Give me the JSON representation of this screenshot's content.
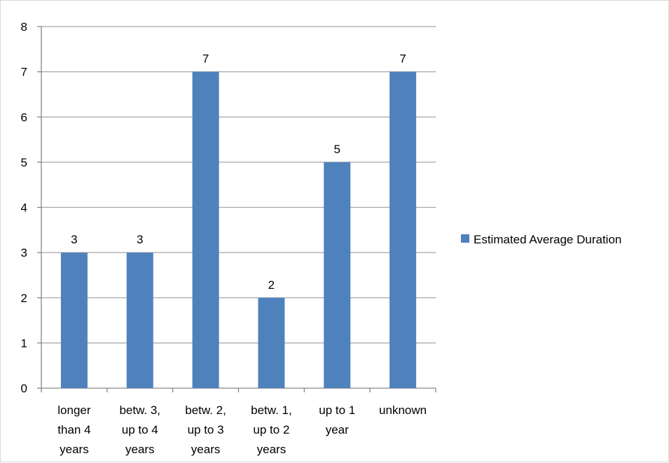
{
  "chart_data": {
    "type": "bar",
    "categories": [
      [
        "longer",
        "than 4",
        "years"
      ],
      [
        "betw. 3,",
        "up to 4",
        "years"
      ],
      [
        "betw. 2,",
        "up to 3",
        "years"
      ],
      [
        "betw. 1,",
        "up to 2",
        "years"
      ],
      [
        "up to 1",
        "year"
      ],
      [
        "unknown"
      ]
    ],
    "series": [
      {
        "name": "Estimated Average Duration",
        "values": [
          3,
          3,
          7,
          2,
          5,
          7
        ],
        "color": "#4f81bd"
      }
    ],
    "title": "",
    "xlabel": "",
    "ylabel": "",
    "ylim": [
      0,
      8
    ],
    "yticks": [
      0,
      1,
      2,
      3,
      4,
      5,
      6,
      7,
      8
    ],
    "data_labels": true,
    "grid": true,
    "legend_position": "right",
    "colors": {
      "bar": "#4f81bd",
      "grid": "#a6a6a6",
      "axis": "#868686"
    }
  }
}
